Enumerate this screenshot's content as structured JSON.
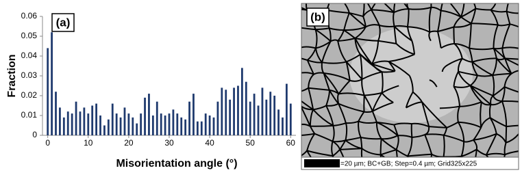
{
  "chart_data": {
    "type": "bar",
    "panel_label": "(a)",
    "ylabel": "Fraction",
    "xlabel": "Misorientation angle (°)",
    "x": [
      0,
      1,
      2,
      3,
      4,
      5,
      6,
      7,
      8,
      9,
      10,
      11,
      12,
      13,
      14,
      15,
      16,
      17,
      18,
      19,
      20,
      21,
      22,
      23,
      24,
      25,
      26,
      27,
      28,
      29,
      30,
      31,
      32,
      33,
      34,
      35,
      36,
      37,
      38,
      39,
      40,
      41,
      42,
      43,
      44,
      45,
      46,
      47,
      48,
      49,
      50,
      51,
      52,
      53,
      54,
      55,
      56,
      57,
      58,
      59,
      60
    ],
    "values": [
      0.044,
      0.052,
      0.022,
      0.014,
      0.009,
      0.012,
      0.011,
      0.017,
      0.012,
      0.014,
      0.011,
      0.015,
      0.016,
      0.01,
      0.005,
      0.008,
      0.016,
      0.011,
      0.009,
      0.014,
      0.011,
      0.009,
      0.006,
      0.011,
      0.019,
      0.021,
      0.01,
      0.017,
      0.011,
      0.01,
      0.011,
      0.013,
      0.011,
      0.009,
      0.008,
      0.017,
      0.021,
      0.007,
      0.007,
      0.011,
      0.01,
      0.009,
      0.017,
      0.024,
      0.023,
      0.018,
      0.024,
      0.025,
      0.034,
      0.027,
      0.017,
      0.021,
      0.015,
      0.024,
      0.018,
      0.022,
      0.02,
      0.013,
      0.009,
      0.026,
      0.016
    ],
    "color": "#1f3a6e",
    "xlim": [
      -1.3,
      61.3
    ],
    "xticks": [
      0,
      10,
      20,
      30,
      40,
      50,
      60
    ],
    "ylim": [
      0,
      0.06
    ],
    "yticks": [
      0,
      0.01,
      0.02,
      0.03,
      0.04,
      0.05,
      0.06
    ]
  },
  "panel_b": {
    "label": "(b)",
    "caption": "=20 µm; BC+GB; Step=0.4 µm; Grid325x225"
  }
}
